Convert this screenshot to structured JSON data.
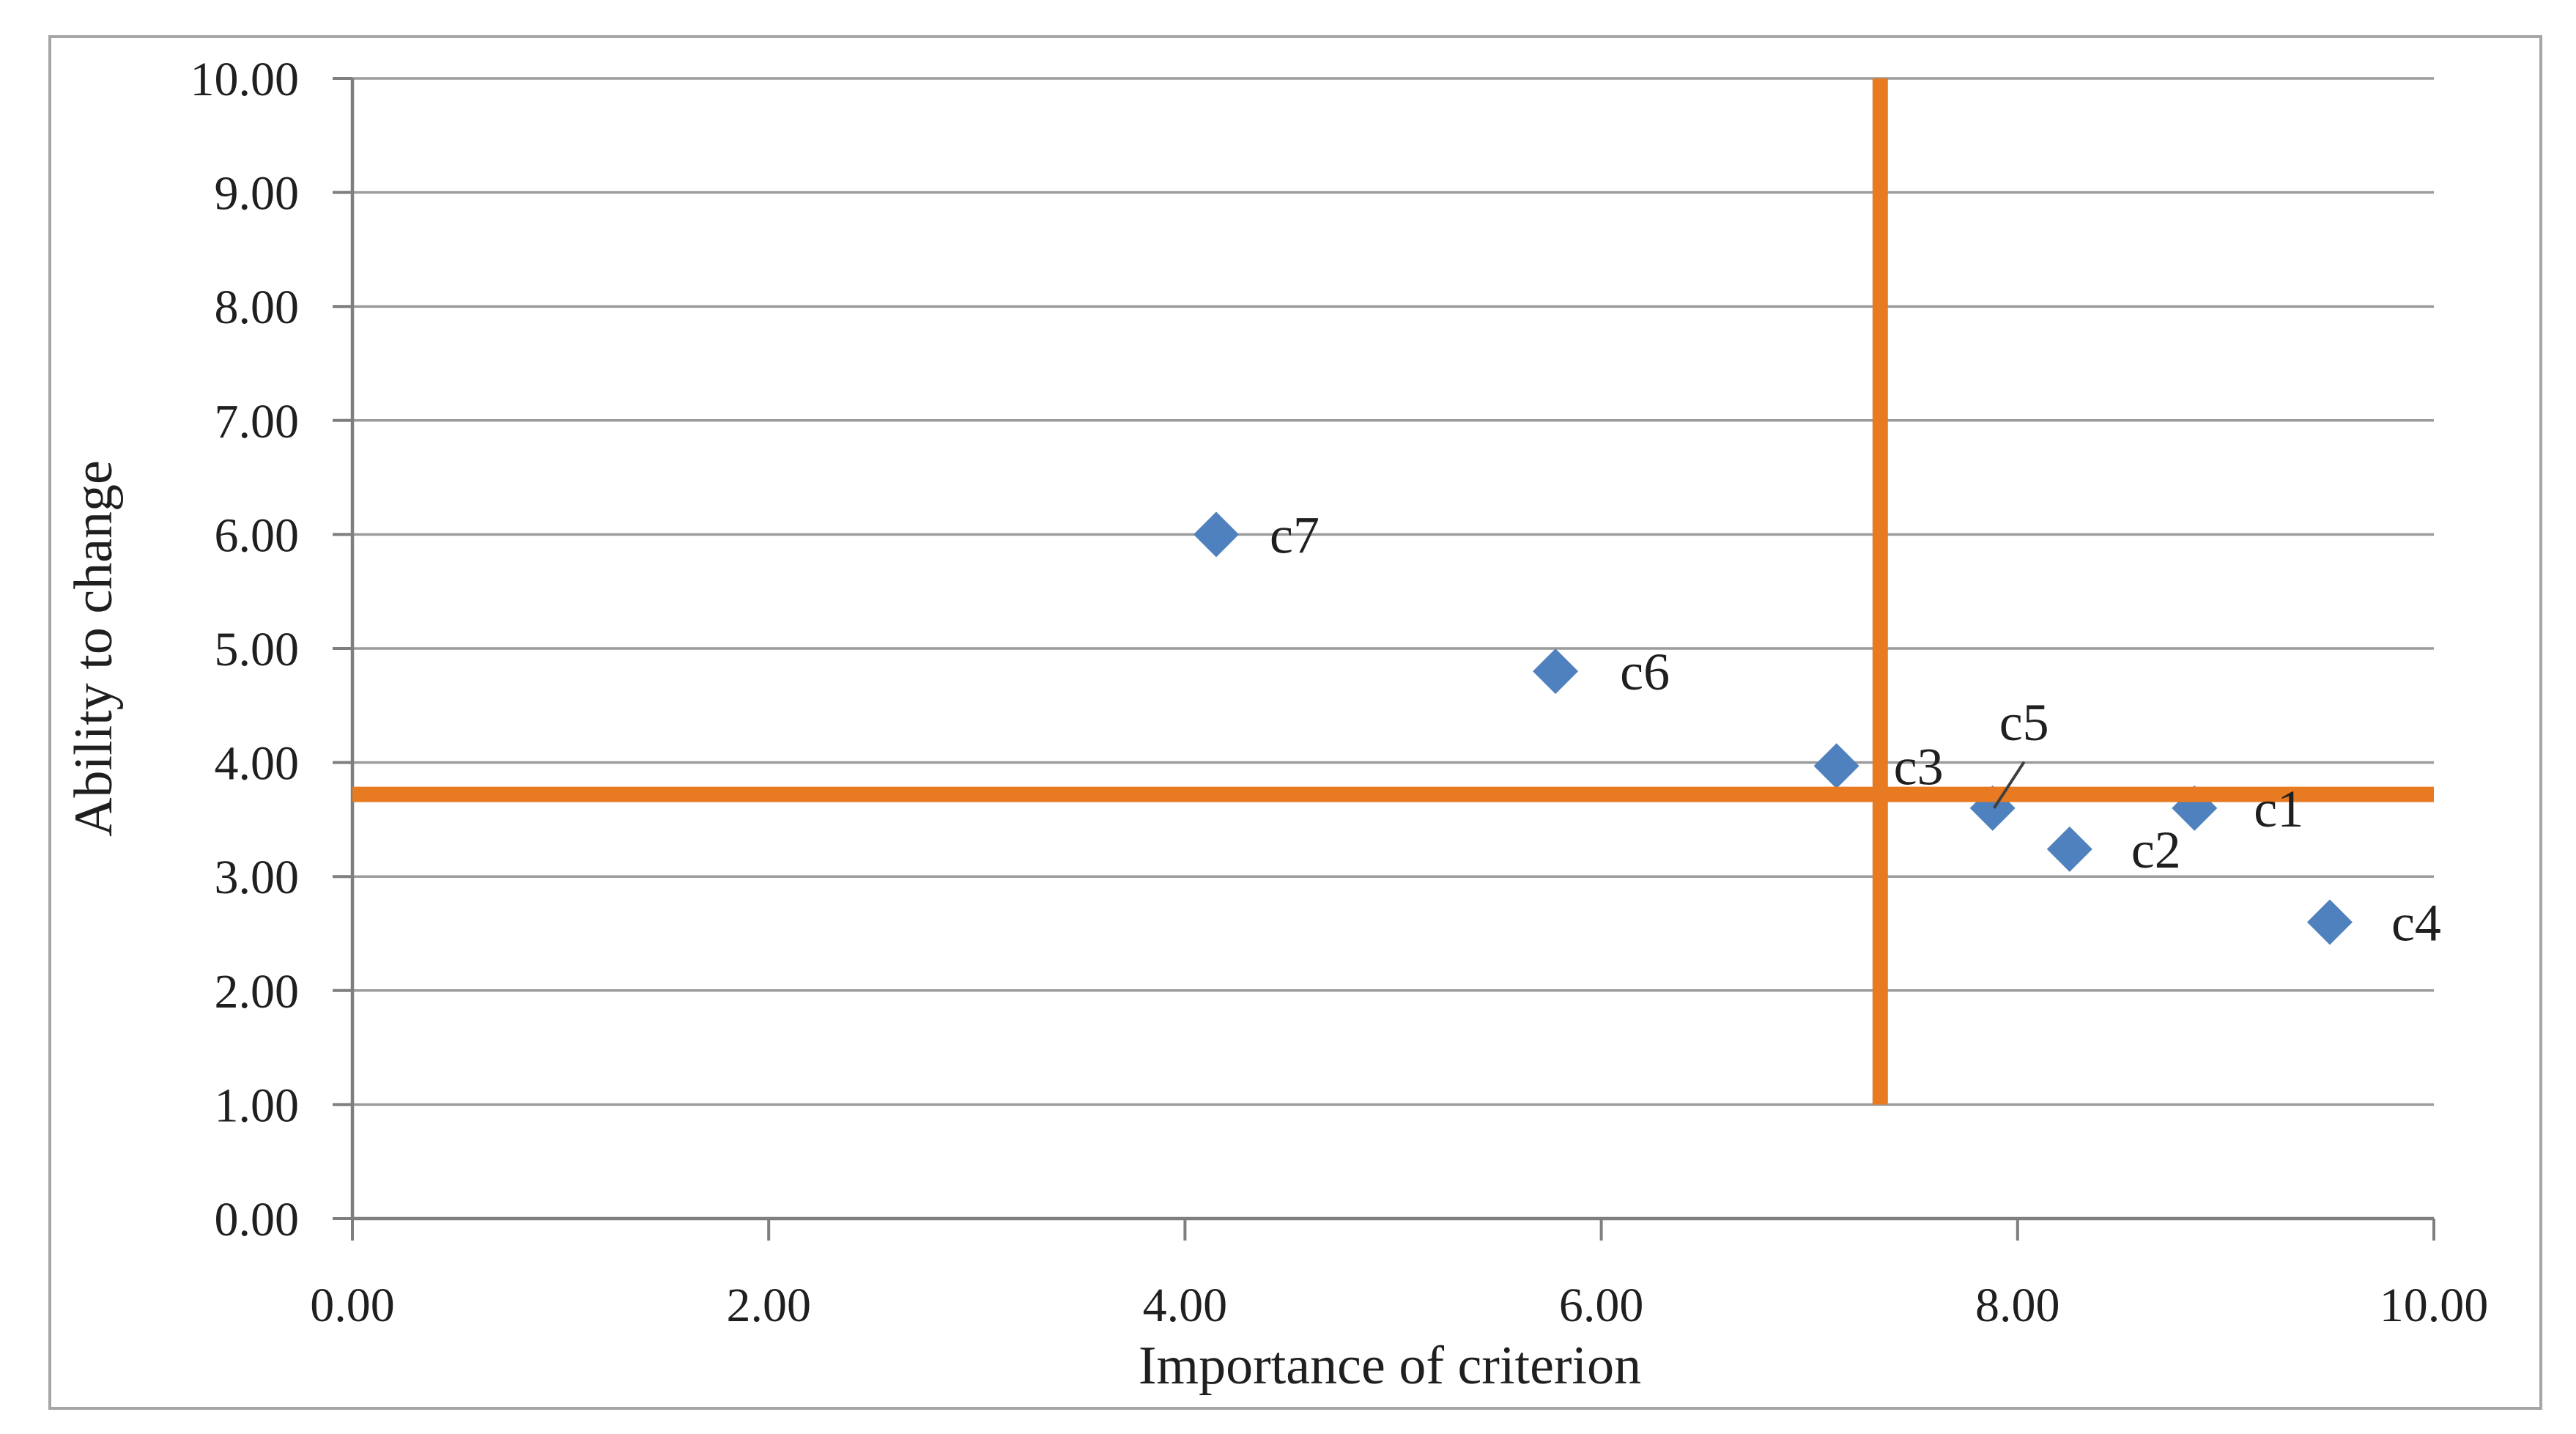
{
  "chart_data": {
    "type": "scatter",
    "title": "",
    "xlabel": "Importance of criterion",
    "ylabel": "Ability to change",
    "xlim": [
      0,
      10
    ],
    "ylim": [
      0,
      10
    ],
    "x_tick_values": [
      0,
      2,
      4,
      6,
      8,
      10
    ],
    "x_tick_labels": [
      "0.00",
      "2.00",
      "4.00",
      "6.00",
      "8.00",
      "10.00"
    ],
    "y_tick_values": [
      0,
      1,
      2,
      3,
      4,
      5,
      6,
      7,
      8,
      9,
      10
    ],
    "y_tick_labels": [
      "0.00",
      "1.00",
      "2.00",
      "3.00",
      "4.00",
      "5.00",
      "6.00",
      "7.00",
      "8.00",
      "9.00",
      "10.00"
    ],
    "grid": "horizontal-only",
    "legend": "none",
    "series_marker": "diamond",
    "points": [
      {
        "label": "c1",
        "x": 8.85,
        "y": 3.6,
        "label_offset": [
          115,
          0
        ]
      },
      {
        "label": "c2",
        "x": 8.25,
        "y": 3.24,
        "label_offset": [
          118,
          0
        ]
      },
      {
        "label": "c3",
        "x": 7.13,
        "y": 3.97,
        "label_offset": [
          112,
          0
        ]
      },
      {
        "label": "c4",
        "x": 9.5,
        "y": 2.6,
        "label_offset": [
          118,
          0
        ]
      },
      {
        "label": "c5",
        "x": 7.88,
        "y": 3.6,
        "label_offset": [
          43,
          -118
        ],
        "leader": true
      },
      {
        "label": "c6",
        "x": 5.78,
        "y": 4.8,
        "label_offset": [
          122,
          0
        ]
      },
      {
        "label": "c7",
        "x": 4.15,
        "y": 6.0,
        "label_offset": [
          107,
          0
        ]
      }
    ],
    "reference_lines": {
      "vertical_x": 7.34,
      "vertical_y_range": [
        1.0,
        10.0
      ],
      "horizontal_y": 3.72,
      "horizontal_x_range": [
        0.0,
        10.0
      ]
    },
    "colors": {
      "marker_fill": "#4E81BD",
      "reference_line": "#E87A22",
      "gridline": "#9C9C9C",
      "axis_line": "#7F7F7F",
      "tick_text": "#1f1f1f",
      "figure_border": "#A6A6A6",
      "leader_line": "#3f3f3f",
      "background": "#ffffff"
    }
  }
}
